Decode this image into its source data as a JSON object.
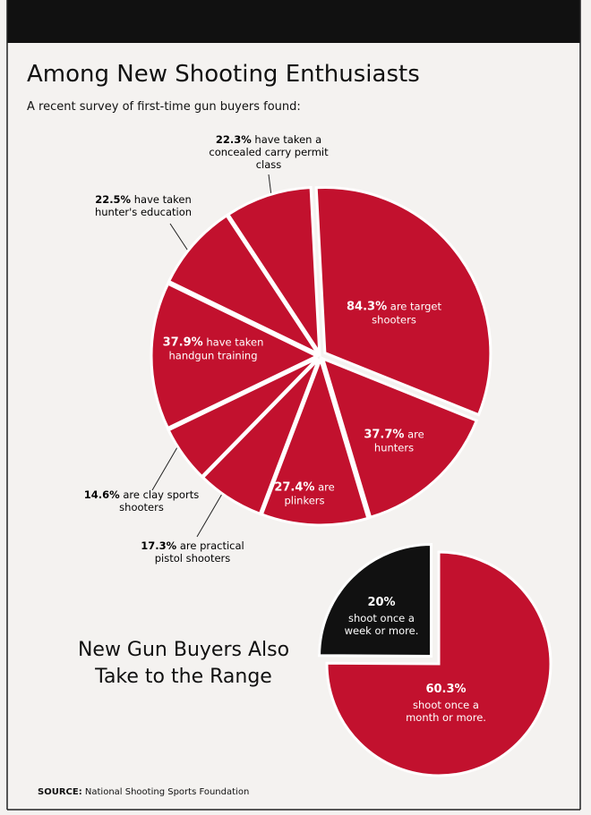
{
  "chart_data": [
    {
      "type": "pie",
      "title": "Among New Shooting Enthusiasts",
      "subtitle": "A recent survey of first-time gun buyers found:",
      "categories": [
        "are target shooters",
        "are hunters",
        "are plinkers",
        "are practical pistol shooters",
        "are clay sports shooters",
        "have taken handgun training",
        "have taken hunter's education",
        "have taken a concealed carry permit class"
      ],
      "values": [
        84.3,
        37.7,
        27.4,
        17.3,
        14.6,
        37.9,
        22.5,
        22.3
      ],
      "value_labels": [
        "84.3%",
        "37.7%",
        "27.4%",
        "17.3%",
        "14.6%",
        "37.9%",
        "22.5%",
        "22.3%"
      ],
      "colors": [
        "#c2112e",
        "#c2112e",
        "#c2112e",
        "#c2112e",
        "#c2112e",
        "#c2112e",
        "#c2112e",
        "#c2112e"
      ]
    },
    {
      "type": "pie",
      "title": "New Gun Buyers Also Take to the Range",
      "categories": [
        "shoot once a month or more.",
        "shoot once a week or more."
      ],
      "values": [
        60.3,
        20
      ],
      "value_labels": [
        "60.3%",
        "20%"
      ],
      "colors": [
        "#c2112e",
        "#111111"
      ]
    }
  ],
  "source": {
    "label": "SOURCE:",
    "text": "National Shooting Sports Foundation"
  }
}
